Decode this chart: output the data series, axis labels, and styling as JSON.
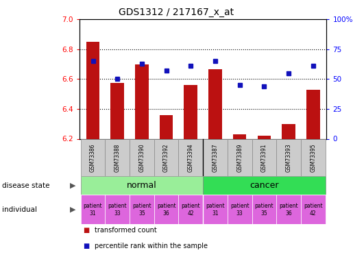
{
  "title": "GDS1312 / 217167_x_at",
  "samples": [
    "GSM73386",
    "GSM73388",
    "GSM73390",
    "GSM73392",
    "GSM73394",
    "GSM73387",
    "GSM73389",
    "GSM73391",
    "GSM73393",
    "GSM73395"
  ],
  "transformed_count": [
    6.85,
    6.575,
    6.7,
    6.36,
    6.56,
    6.665,
    6.23,
    6.22,
    6.3,
    6.53
  ],
  "percentile_rank": [
    65,
    50,
    63,
    57,
    61,
    65,
    45,
    44,
    55,
    61
  ],
  "ylim": [
    6.2,
    7.0
  ],
  "yticks": [
    6.2,
    6.4,
    6.6,
    6.8,
    7.0
  ],
  "right_ylim": [
    0,
    100
  ],
  "right_yticks": [
    0,
    25,
    50,
    75,
    100
  ],
  "right_yticklabels": [
    "0",
    "25",
    "50",
    "75",
    "100%"
  ],
  "dotted_lines": [
    6.4,
    6.6,
    6.8
  ],
  "disease_state_groups": [
    {
      "label": "normal",
      "start": 0,
      "end": 5,
      "color": "#99ee99"
    },
    {
      "label": "cancer",
      "start": 5,
      "end": 10,
      "color": "#33dd55"
    }
  ],
  "individuals": [
    "patient\n31",
    "patient\n33",
    "patient\n35",
    "patient\n36",
    "patient\n42",
    "patient\n31",
    "patient\n33",
    "patient\n35",
    "patient\n36",
    "patient\n42"
  ],
  "individual_color": "#dd66dd",
  "bar_color": "#bb1111",
  "percentile_color": "#1111bb",
  "sample_bg_color": "#cccccc",
  "bar_width": 0.55
}
